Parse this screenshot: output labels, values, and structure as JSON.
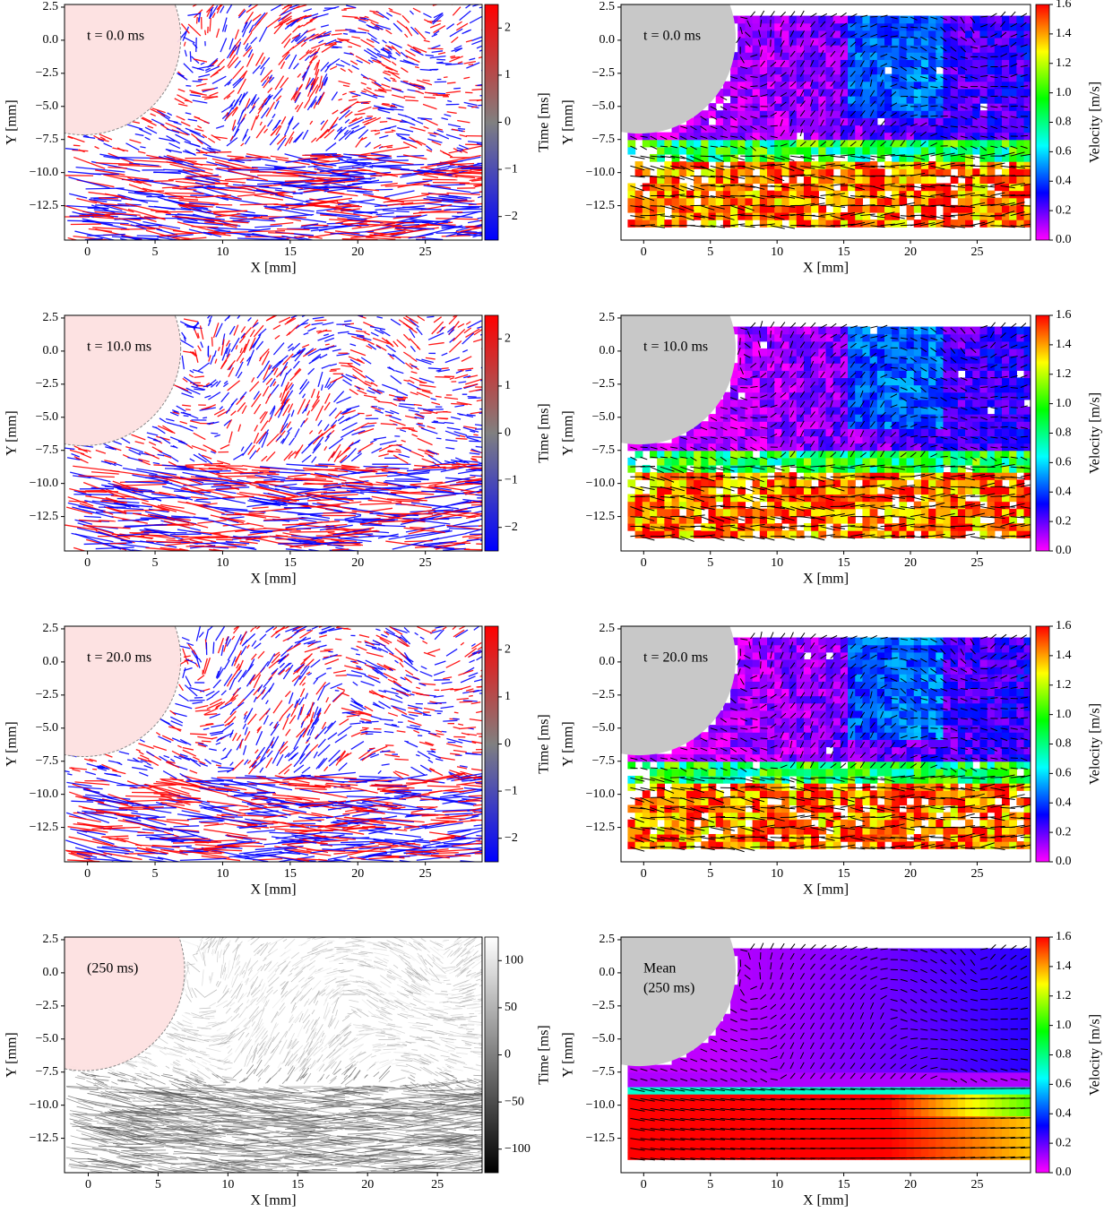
{
  "chart_data": [
    {
      "type": "streak_image",
      "annotation": [
        "t = 0.0 ms"
      ],
      "xlabel": "X [mm]",
      "ylabel": "Y [mm]",
      "xlim": [
        -1.7,
        29.2
      ],
      "ylim": [
        -15.1,
        2.7
      ],
      "xticks": [
        0,
        5,
        10,
        15,
        20,
        25
      ],
      "yticks": [
        2.5,
        {
          "value": 0,
          "label": "0.0"
        },
        {
          "value": -2.5,
          "label": "−2.5"
        },
        {
          "value": -5,
          "label": "−5.0"
        },
        {
          "value": -7.5,
          "label": "−7.5"
        },
        {
          "value": -10,
          "label": "−10.0"
        },
        {
          "value": -12.5,
          "label": "−12.5"
        }
      ],
      "colorbar": {
        "label": "Time [ms]",
        "lim": [
          -2.5,
          2.5
        ],
        "ticks": [
          {
            "value": -2,
            "label": "−2"
          },
          {
            "value": -1,
            "label": "−1"
          },
          0,
          1,
          2
        ],
        "colormap": [
          "#0000ff",
          "#808080",
          "#ff0000"
        ]
      }
    },
    {
      "type": "vector_field",
      "annotation": [
        "t = 0.0 ms"
      ],
      "xlabel": "X [mm]",
      "ylabel": "Y [mm]",
      "xlim": [
        -1.7,
        29.0
      ],
      "ylim": [
        -15.1,
        2.7
      ],
      "xticks": [
        0,
        5,
        10,
        15,
        20,
        25
      ],
      "yticks": [
        2.5,
        {
          "value": 0,
          "label": "0.0"
        },
        {
          "value": -2.5,
          "label": "−2.5"
        },
        {
          "value": -5,
          "label": "−5.0"
        },
        {
          "value": -7.5,
          "label": "−7.5"
        },
        {
          "value": -10,
          "label": "−10.0"
        },
        {
          "value": -12.5,
          "label": "−12.5"
        }
      ],
      "colorbar": {
        "label": "Velocity [m/s]",
        "lim": [
          0,
          1.6
        ],
        "ticks": [
          {
            "value": 0,
            "label": "0.0"
          },
          0.2,
          0.4,
          0.6,
          0.8,
          {
            "value": 1,
            "label": "1.0"
          },
          1.2,
          1.4,
          1.6
        ],
        "colormap": [
          "#ff00ff",
          "#0000ff",
          "#00ffff",
          "#00ff00",
          "#ffff00",
          "#ff0000"
        ]
      }
    },
    {
      "type": "streak_image",
      "annotation": [
        "t = 10.0 ms"
      ],
      "xlabel": "X [mm]",
      "ylabel": "Y [mm]",
      "xlim": [
        -1.7,
        29.2
      ],
      "ylim": [
        -15.1,
        2.7
      ],
      "xticks": [
        0,
        5,
        10,
        15,
        20,
        25
      ],
      "yticks": [
        2.5,
        {
          "value": 0,
          "label": "0.0"
        },
        {
          "value": -2.5,
          "label": "−2.5"
        },
        {
          "value": -5,
          "label": "−5.0"
        },
        {
          "value": -7.5,
          "label": "−7.5"
        },
        {
          "value": -10,
          "label": "−10.0"
        },
        {
          "value": -12.5,
          "label": "−12.5"
        }
      ],
      "colorbar": {
        "label": "Time [ms]",
        "lim": [
          -2.5,
          2.5
        ],
        "ticks": [
          {
            "value": -2,
            "label": "−2"
          },
          {
            "value": -1,
            "label": "−1"
          },
          0,
          1,
          2
        ],
        "colormap": [
          "#0000ff",
          "#808080",
          "#ff0000"
        ]
      }
    },
    {
      "type": "vector_field",
      "annotation": [
        "t = 10.0 ms"
      ],
      "xlabel": "X [mm]",
      "ylabel": "Y [mm]",
      "xlim": [
        -1.7,
        29.0
      ],
      "ylim": [
        -15.1,
        2.7
      ],
      "xticks": [
        0,
        5,
        10,
        15,
        20,
        25
      ],
      "yticks": [
        2.5,
        {
          "value": 0,
          "label": "0.0"
        },
        {
          "value": -2.5,
          "label": "−2.5"
        },
        {
          "value": -5,
          "label": "−5.0"
        },
        {
          "value": -7.5,
          "label": "−7.5"
        },
        {
          "value": -10,
          "label": "−10.0"
        },
        {
          "value": -12.5,
          "label": "−12.5"
        }
      ],
      "colorbar": {
        "label": "Velocity [m/s]",
        "lim": [
          0,
          1.6
        ],
        "ticks": [
          {
            "value": 0,
            "label": "0.0"
          },
          0.2,
          0.4,
          0.6,
          0.8,
          {
            "value": 1,
            "label": "1.0"
          },
          1.2,
          1.4,
          1.6
        ],
        "colormap": [
          "#ff00ff",
          "#0000ff",
          "#00ffff",
          "#00ff00",
          "#ffff00",
          "#ff0000"
        ]
      }
    },
    {
      "type": "streak_image",
      "annotation": [
        "t = 20.0 ms"
      ],
      "xlabel": "X [mm]",
      "ylabel": "Y [mm]",
      "xlim": [
        -1.7,
        29.2
      ],
      "ylim": [
        -15.1,
        2.7
      ],
      "xticks": [
        0,
        5,
        10,
        15,
        20,
        25
      ],
      "yticks": [
        2.5,
        {
          "value": 0,
          "label": "0.0"
        },
        {
          "value": -2.5,
          "label": "−2.5"
        },
        {
          "value": -5,
          "label": "−5.0"
        },
        {
          "value": -7.5,
          "label": "−7.5"
        },
        {
          "value": -10,
          "label": "−10.0"
        },
        {
          "value": -12.5,
          "label": "−12.5"
        }
      ],
      "colorbar": {
        "label": "Time [ms]",
        "lim": [
          -2.5,
          2.5
        ],
        "ticks": [
          {
            "value": -2,
            "label": "−2"
          },
          {
            "value": -1,
            "label": "−1"
          },
          0,
          1,
          2
        ],
        "colormap": [
          "#0000ff",
          "#808080",
          "#ff0000"
        ]
      }
    },
    {
      "type": "vector_field",
      "annotation": [
        "t = 20.0 ms"
      ],
      "xlabel": "X [mm]",
      "ylabel": "Y [mm]",
      "xlim": [
        -1.7,
        29.0
      ],
      "ylim": [
        -15.1,
        2.7
      ],
      "xticks": [
        0,
        5,
        10,
        15,
        20,
        25
      ],
      "yticks": [
        2.5,
        {
          "value": 0,
          "label": "0.0"
        },
        {
          "value": -2.5,
          "label": "−2.5"
        },
        {
          "value": -5,
          "label": "−5.0"
        },
        {
          "value": -7.5,
          "label": "−7.5"
        },
        {
          "value": -10,
          "label": "−10.0"
        },
        {
          "value": -12.5,
          "label": "−12.5"
        }
      ],
      "colorbar": {
        "label": "Velocity [m/s]",
        "lim": [
          0,
          1.6
        ],
        "ticks": [
          {
            "value": 0,
            "label": "0.0"
          },
          0.2,
          0.4,
          0.6,
          0.8,
          {
            "value": 1,
            "label": "1.0"
          },
          1.2,
          1.4,
          1.6
        ],
        "colormap": [
          "#ff00ff",
          "#0000ff",
          "#00ffff",
          "#00ff00",
          "#ffff00",
          "#ff0000"
        ]
      }
    },
    {
      "type": "streak_image",
      "annotation": [
        "(250 ms)"
      ],
      "xlabel": "X [mm]",
      "ylabel": "Y [mm]",
      "xlim": [
        -1.7,
        28.2
      ],
      "ylim": [
        -15.1,
        2.7
      ],
      "xticks": [
        0,
        5,
        10,
        15,
        20,
        25
      ],
      "yticks": [
        2.5,
        {
          "value": 0,
          "label": "0.0"
        },
        {
          "value": -2.5,
          "label": "−2.5"
        },
        {
          "value": -5,
          "label": "−5.0"
        },
        {
          "value": -7.5,
          "label": "−7.5"
        },
        {
          "value": -10,
          "label": "−10.0"
        },
        {
          "value": -12.5,
          "label": "−12.5"
        }
      ],
      "colorbar": {
        "label": "Time [ms]",
        "lim": [
          -125,
          125
        ],
        "ticks": [
          {
            "value": -100,
            "label": "−100"
          },
          {
            "value": -50,
            "label": "−50"
          },
          0,
          50,
          100
        ],
        "colormap": [
          "#000000",
          "#ffffff"
        ]
      }
    },
    {
      "type": "vector_field",
      "annotation": [
        "Mean",
        "(250 ms)"
      ],
      "mean": true,
      "xlabel": "X [mm]",
      "ylabel": "Y [mm]",
      "xlim": [
        -1.7,
        29.0
      ],
      "ylim": [
        -15.1,
        2.7
      ],
      "xticks": [
        0,
        5,
        10,
        15,
        20,
        25
      ],
      "yticks": [
        2.5,
        {
          "value": 0,
          "label": "0.0"
        },
        {
          "value": -2.5,
          "label": "−2.5"
        },
        {
          "value": -5,
          "label": "−5.0"
        },
        {
          "value": -7.5,
          "label": "−7.5"
        },
        {
          "value": -10,
          "label": "−10.0"
        },
        {
          "value": -12.5,
          "label": "−12.5"
        }
      ],
      "colorbar": {
        "label": "Velocity [m/s]",
        "lim": [
          0,
          1.6
        ],
        "ticks": [
          {
            "value": 0,
            "label": "0.0"
          },
          0.2,
          0.4,
          0.6,
          0.8,
          {
            "value": 1,
            "label": "1.0"
          },
          1.2,
          1.4,
          1.6
        ],
        "colormap": [
          "#ff00ff",
          "#0000ff",
          "#00ffff",
          "#00ff00",
          "#ffff00",
          "#ff0000"
        ]
      }
    }
  ]
}
